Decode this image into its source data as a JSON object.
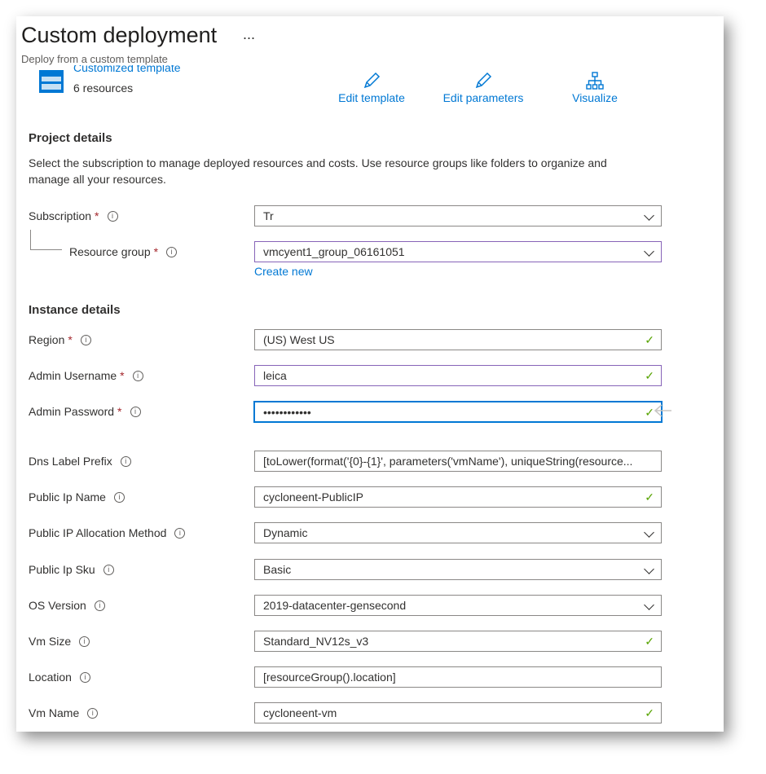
{
  "header": {
    "title": "Custom deployment",
    "more": "...",
    "subtitle": "Deploy from a custom template"
  },
  "template": {
    "name": "Customized template",
    "resources": "6 resources"
  },
  "actions": [
    {
      "label": "Edit template",
      "icon": "pencil-icon"
    },
    {
      "label": "Edit parameters",
      "icon": "pencil-icon"
    },
    {
      "label": "Visualize",
      "icon": "hierarchy-icon"
    }
  ],
  "project": {
    "heading": "Project details",
    "description": "Select the subscription to manage deployed resources and costs. Use resource groups like folders to organize and manage all your resources.",
    "subscription": {
      "label": "Subscription",
      "value": "Tr"
    },
    "resource_group": {
      "label": "Resource group",
      "value": "vmcyent1_group_06161051",
      "create_new": "Create new"
    }
  },
  "instance": {
    "heading": "Instance details",
    "fields": [
      {
        "label": "Region",
        "required": "*",
        "value": "(US) West US",
        "type": "valid"
      },
      {
        "label": "Admin Username",
        "required": "*",
        "value": "leica",
        "type": "valid"
      },
      {
        "label": "Admin Password",
        "required": "*",
        "value": "••••••••••••",
        "type": "valid"
      },
      {
        "label": "Dns Label Prefix",
        "value": "[toLower(format('{0}-{1}', parameters('vmName'), uniqueString(resource...",
        "type": "text"
      },
      {
        "label": "Public Ip Name",
        "value": "cycloneent-PublicIP",
        "type": "valid"
      },
      {
        "label": "Public IP Allocation Method",
        "value": "Dynamic",
        "type": "select"
      },
      {
        "label": "Public Ip Sku",
        "value": "Basic",
        "type": "select"
      },
      {
        "label": "OS Version",
        "value": "2019-datacenter-gensecond",
        "type": "select"
      },
      {
        "label": "Vm Size",
        "value": "Standard_NV12s_v3",
        "type": "valid"
      },
      {
        "label": "Location",
        "value": "[resourceGroup().location]",
        "type": "text"
      },
      {
        "label": "Vm Name",
        "value": "cycloneent-vm",
        "type": "valid"
      }
    ]
  },
  "colors": {
    "accent": "#0078d4",
    "valid": "#57a300",
    "required": "#a4262c",
    "modified": "#8764b8"
  }
}
